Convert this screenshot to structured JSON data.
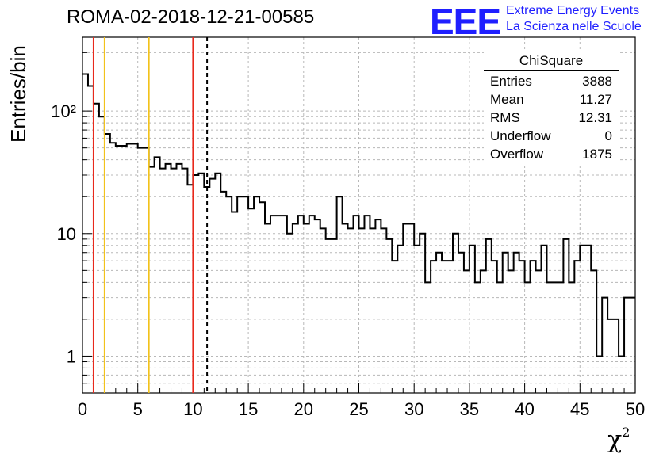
{
  "title": "ROMA-02-2018-12-21-00585",
  "logo": {
    "mark": "EEE",
    "line1": "Extreme Energy Events",
    "line2": "La Scienza nelle Scuole"
  },
  "stats": {
    "header": "ChiSquare",
    "rows": [
      {
        "label": "Entries",
        "value": "3888"
      },
      {
        "label": "Mean",
        "value": "11.27"
      },
      {
        "label": "RMS",
        "value": "12.31"
      },
      {
        "label": "Underflow",
        "value": "0"
      },
      {
        "label": "Overflow",
        "value": "1875"
      }
    ]
  },
  "chart_data": {
    "type": "histogram",
    "title": "ROMA-02-2018-12-21-00585",
    "xlabel": "χ",
    "xlabel_superscript": "2",
    "ylabel": "Entries/bin",
    "xlim": [
      0,
      50
    ],
    "ylim": [
      0.5,
      400
    ],
    "yscale": "log",
    "bin_width": 0.5,
    "x_ticks": [
      "0",
      "5",
      "10",
      "15",
      "20",
      "25",
      "30",
      "35",
      "40",
      "45",
      "50"
    ],
    "y_ticks": [
      {
        "value": 1,
        "label": "1"
      },
      {
        "value": 10,
        "label": "10"
      },
      {
        "value": 100,
        "label": "10²"
      }
    ],
    "grid": true,
    "values": [
      200,
      160,
      115,
      90,
      65,
      55,
      52,
      52,
      54,
      54,
      50,
      50,
      35,
      42,
      34,
      37,
      34,
      37,
      34,
      25,
      30,
      31,
      24,
      28,
      31,
      22,
      20,
      15,
      20,
      20,
      16,
      20,
      18,
      12,
      14,
      14,
      14,
      10,
      12,
      14,
      12,
      14,
      13,
      11,
      9,
      9,
      20,
      12,
      11,
      14,
      11,
      14,
      11,
      13,
      11,
      9,
      6,
      8,
      12,
      12,
      8,
      10,
      4,
      6,
      7,
      6,
      6,
      10,
      7,
      5,
      8,
      4,
      5,
      9,
      6,
      4,
      7,
      5,
      7,
      6,
      4,
      6,
      5,
      8,
      4,
      4,
      4,
      9,
      4,
      6,
      8,
      8,
      5,
      1,
      3,
      2,
      2,
      1,
      3,
      3
    ],
    "vertical_lines": [
      {
        "x": 1,
        "color": "#e8291c",
        "style": "solid"
      },
      {
        "x": 2,
        "color": "#f2c21b",
        "style": "solid"
      },
      {
        "x": 6,
        "color": "#f2c21b",
        "style": "solid"
      },
      {
        "x": 10,
        "color": "#e8291c",
        "style": "solid"
      },
      {
        "x": 11.27,
        "color": "#000000",
        "style": "dashed"
      }
    ],
    "line_color": "#000000"
  }
}
